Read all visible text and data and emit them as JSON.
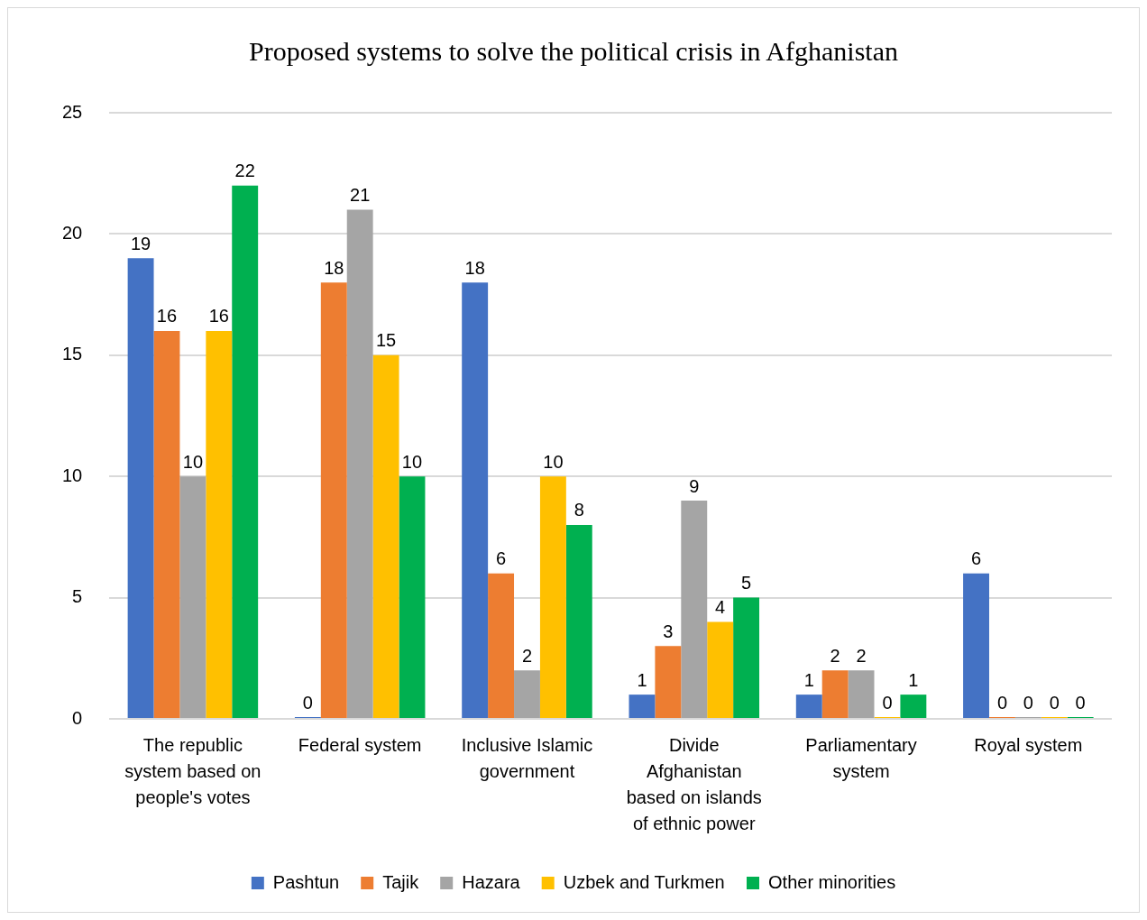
{
  "chart_data": {
    "type": "bar",
    "title": "Proposed systems to solve the political crisis in Afghanistan",
    "categories": [
      "The republic system based on people's votes",
      "Federal system",
      "Inclusive Islamic government",
      "Divide Afghanistan based on islands of ethnic power",
      "Parliamentary system",
      "Royal system"
    ],
    "series": [
      {
        "name": "Pashtun",
        "color": "#4472c4",
        "values": [
          19,
          0,
          18,
          1,
          1,
          6
        ]
      },
      {
        "name": "Tajik",
        "color": "#ed7d31",
        "values": [
          16,
          18,
          6,
          3,
          2,
          0
        ]
      },
      {
        "name": "Hazara",
        "color": "#a5a5a5",
        "values": [
          10,
          21,
          2,
          9,
          2,
          0
        ]
      },
      {
        "name": "Uzbek and Turkmen",
        "color": "#ffc000",
        "values": [
          16,
          15,
          10,
          4,
          0,
          0
        ]
      },
      {
        "name": "Other minorities",
        "color": "#00b050",
        "values": [
          22,
          10,
          8,
          5,
          1,
          0
        ]
      }
    ],
    "ylim": [
      0,
      25
    ],
    "yticks": [
      0,
      5,
      10,
      15,
      20,
      25
    ],
    "grid": "y",
    "legend": "bottom",
    "data_labels": true
  }
}
